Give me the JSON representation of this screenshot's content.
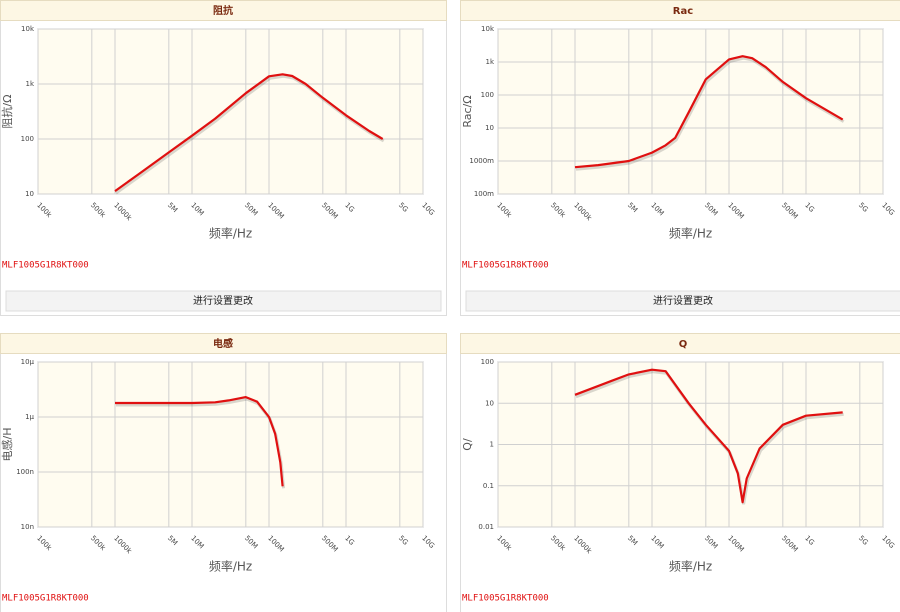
{
  "chart_data": [
    {
      "type": "line",
      "title": "阻抗",
      "x_label": "频率/Hz",
      "y_label": "阻抗/Ω",
      "xscale": "log",
      "yscale": "log",
      "grid": true,
      "color": "#e01010",
      "xlim": [
        100000,
        10000000000
      ],
      "xticks": [
        {
          "value": 100000,
          "label": "100k"
        },
        {
          "value": 500000,
          "label": "500k"
        },
        {
          "value": 1000000,
          "label": "1000k"
        },
        {
          "value": 5000000,
          "label": "5M"
        },
        {
          "value": 10000000,
          "label": "10M"
        },
        {
          "value": 50000000,
          "label": "50M"
        },
        {
          "value": 100000000,
          "label": "100M"
        },
        {
          "value": 500000000,
          "label": "500M"
        },
        {
          "value": 1000000000,
          "label": "1G"
        },
        {
          "value": 5000000000,
          "label": "5G"
        },
        {
          "value": 10000000000,
          "label": "10G"
        }
      ],
      "ylim": [
        10,
        10000
      ],
      "yticks": [
        10,
        100,
        {
          "value": 1000,
          "label": "1k"
        },
        {
          "value": 10000,
          "label": "10k"
        }
      ],
      "x": [
        1000000,
        2000000,
        5000000,
        10000000,
        20000000,
        50000000,
        100000000,
        150000000,
        200000000,
        300000000,
        500000000,
        1000000000,
        2000000000,
        3000000000
      ],
      "values": [
        11.3,
        22.6,
        57,
        115,
        235,
        680,
        1380,
        1500,
        1400,
        1000,
        560,
        270,
        140,
        100
      ]
    },
    {
      "type": "line",
      "title": "Rac",
      "x_label": "频率/Hz",
      "y_label": "Rac/Ω",
      "xscale": "log",
      "yscale": "log",
      "grid": true,
      "color": "#e01010",
      "xlim": [
        100000,
        10000000000
      ],
      "xticks": [
        {
          "value": 100000,
          "label": "100k"
        },
        {
          "value": 500000,
          "label": "500k"
        },
        {
          "value": 1000000,
          "label": "1000k"
        },
        {
          "value": 5000000,
          "label": "5M"
        },
        {
          "value": 10000000,
          "label": "10M"
        },
        {
          "value": 50000000,
          "label": "50M"
        },
        {
          "value": 100000000,
          "label": "100M"
        },
        {
          "value": 500000000,
          "label": "500M"
        },
        {
          "value": 1000000000,
          "label": "1G"
        },
        {
          "value": 5000000000,
          "label": "5G"
        },
        {
          "value": 10000000000,
          "label": "10G"
        }
      ],
      "ylim": [
        0.1,
        10000
      ],
      "yticks": [
        {
          "value": 0.1,
          "label": "100m"
        },
        {
          "value": 1,
          "label": "1000m"
        },
        10,
        100,
        {
          "value": 1000,
          "label": "1k"
        },
        {
          "value": 10000,
          "label": "10k"
        }
      ],
      "x": [
        1000000,
        2000000,
        5000000,
        10000000,
        15000000,
        20000000,
        30000000,
        50000000,
        100000000,
        150000000,
        200000000,
        300000000,
        500000000,
        1000000000,
        3000000000
      ],
      "values": [
        0.65,
        0.75,
        1.0,
        1.8,
        3,
        5,
        30,
        300,
        1200,
        1500,
        1300,
        700,
        250,
        80,
        18
      ]
    },
    {
      "type": "line",
      "title": "电感",
      "x_label": "频率/Hz",
      "y_label": "电感/H",
      "xscale": "log",
      "yscale": "log",
      "grid": true,
      "color": "#e01010",
      "xlim": [
        100000,
        10000000000
      ],
      "xticks": [
        {
          "value": 100000,
          "label": "100k"
        },
        {
          "value": 500000,
          "label": "500k"
        },
        {
          "value": 1000000,
          "label": "1000k"
        },
        {
          "value": 5000000,
          "label": "5M"
        },
        {
          "value": 10000000,
          "label": "10M"
        },
        {
          "value": 50000000,
          "label": "50M"
        },
        {
          "value": 100000000,
          "label": "100M"
        },
        {
          "value": 500000000,
          "label": "500M"
        },
        {
          "value": 1000000000,
          "label": "1G"
        },
        {
          "value": 5000000000,
          "label": "5G"
        },
        {
          "value": 10000000000,
          "label": "10G"
        }
      ],
      "ylim": [
        1e-08,
        1e-05
      ],
      "yticks": [
        {
          "value": 1e-08,
          "label": "10n"
        },
        {
          "value": 1e-07,
          "label": "100n"
        },
        {
          "value": 1e-06,
          "label": "1μ"
        },
        {
          "value": 1e-05,
          "label": "10μ"
        }
      ],
      "x": [
        1000000,
        5000000,
        10000000,
        20000000,
        30000000,
        50000000,
        70000000,
        100000000,
        120000000,
        140000000,
        150000000
      ],
      "values": [
        1.8e-06,
        1.8e-06,
        1.8e-06,
        1.85e-06,
        2e-06,
        2.3e-06,
        1.9e-06,
        1e-06,
        5e-07,
        1.5e-07,
        5.5e-08
      ]
    },
    {
      "type": "line",
      "title": "Q",
      "x_label": "频率/Hz",
      "y_label": "Q/",
      "xscale": "log",
      "yscale": "log",
      "grid": true,
      "color": "#e01010",
      "xlim": [
        100000,
        10000000000
      ],
      "xticks": [
        {
          "value": 100000,
          "label": "100k"
        },
        {
          "value": 500000,
          "label": "500k"
        },
        {
          "value": 1000000,
          "label": "1000k"
        },
        {
          "value": 5000000,
          "label": "5M"
        },
        {
          "value": 10000000,
          "label": "10M"
        },
        {
          "value": 50000000,
          "label": "50M"
        },
        {
          "value": 100000000,
          "label": "100M"
        },
        {
          "value": 500000000,
          "label": "500M"
        },
        {
          "value": 1000000000,
          "label": "1G"
        },
        {
          "value": 5000000000,
          "label": "5G"
        },
        {
          "value": 10000000000,
          "label": "10G"
        }
      ],
      "ylim": [
        0.01,
        100
      ],
      "yticks": [
        0.01,
        0.1,
        1,
        10,
        100
      ],
      "x": [
        1000000,
        3000000,
        5000000,
        10000000,
        15000000,
        30000000,
        50000000,
        100000000,
        130000000,
        150000000,
        170000000,
        250000000,
        500000000,
        1000000000,
        3000000000
      ],
      "values": [
        16,
        35,
        50,
        65,
        60,
        10,
        3,
        0.7,
        0.2,
        0.04,
        0.15,
        0.8,
        3,
        5,
        6
      ]
    }
  ],
  "panels": [
    {
      "part": "MLF1005G1R8KT000",
      "button": "进行设置更改"
    },
    {
      "part": "MLF1005G1R8KT000",
      "button": "进行设置更改"
    },
    {
      "part": "MLF1005G1R8KT000"
    },
    {
      "part": "MLF1005G1R8KT000"
    }
  ]
}
